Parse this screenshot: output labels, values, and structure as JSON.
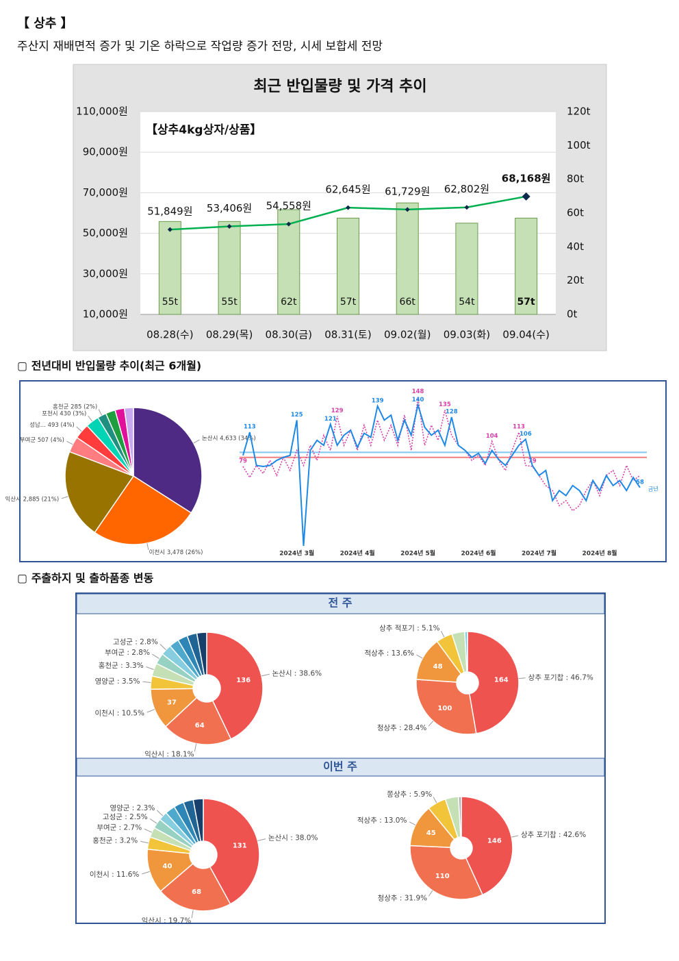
{
  "header": {
    "title": "【 상추 】",
    "summary": "주산지 재배면적 증가 및 기온 하락으로 작업량 증가 전망, 시세 보합세 전망"
  },
  "sections": [
    "▢ 전년대비 반입물량 추이(최근 6개월)",
    "▢ 주출하지 및 출하품종 변동"
  ],
  "panels": [
    "전 주",
    "이번 주"
  ],
  "chart_data": [
    {
      "type": "combo",
      "title": "최근 반입물량 및 가격 추이",
      "subtitle": "【상추4kg상자/상품】",
      "categories": [
        "08.28(수)",
        "08.29(목)",
        "08.30(금)",
        "08.31(토)",
        "09.02(월)",
        "09.03(화)",
        "09.04(수)"
      ],
      "series": [
        {
          "type": "bar",
          "axis": "y2",
          "color": "#c5e0b4",
          "values": [
            55,
            55,
            62,
            57,
            66,
            54,
            57
          ],
          "value_labels": [
            "55t",
            "55t",
            "62t",
            "57t",
            "66t",
            "54t",
            "57t"
          ]
        },
        {
          "type": "line",
          "color": "#00b050",
          "values": [
            51849,
            53406,
            54558,
            62645,
            61729,
            62802,
            68168
          ],
          "value_labels": [
            "51,849원",
            "53,406원",
            "54,558원",
            "62,645원",
            "61,729원",
            "62,802원",
            "68,168원"
          ]
        }
      ],
      "ylim": [
        10000,
        110000
      ],
      "yticks": [
        {
          "value": 10000,
          "label": "10,000원"
        },
        {
          "value": 30000,
          "label": "30,000원"
        },
        {
          "value": 50000,
          "label": "50,000원"
        },
        {
          "value": 70000,
          "label": "70,000원"
        },
        {
          "value": 90000,
          "label": "90,000원"
        },
        {
          "value": 110000,
          "label": "110,000원"
        }
      ],
      "y2lim": [
        0,
        120
      ],
      "y2ticks": [
        {
          "value": 0,
          "label": "0t"
        },
        {
          "value": 20,
          "label": "20t"
        },
        {
          "value": 40,
          "label": "40t"
        },
        {
          "value": 60,
          "label": "60t"
        },
        {
          "value": 80,
          "label": "80t"
        },
        {
          "value": 100,
          "label": "100t"
        },
        {
          "value": 120,
          "label": "120t"
        }
      ],
      "grid": true
    },
    {
      "type": "pie",
      "categories": [
        "논산시 4,633 (34%)",
        "이천시 3,478 (26%)",
        "익산시 2,885 (21%)",
        "부여군 507 (4%)",
        "성남... 493 (4%)",
        "포천시 430 (3%)",
        "홍천군 285 (2%)",
        null,
        null,
        null
      ],
      "values": [
        4633,
        3478,
        2885,
        507,
        493,
        430,
        285,
        310,
        300,
        290
      ],
      "colors": [
        "#4e2a84",
        "#ff6600",
        "#997300",
        "#ff7c80",
        "#ff3b3b",
        "#00d4b4",
        "#1f8f7f",
        "#1e9e3e",
        "#e0109a",
        "#c9a8f0"
      ]
    },
    {
      "type": "line",
      "ylim": [
        0,
        160
      ],
      "xticks": [
        {
          "value": 8,
          "label": "2024년 3월"
        },
        {
          "value": 17,
          "label": "2024년 4월"
        },
        {
          "value": 26,
          "label": "2024년 5월"
        },
        {
          "value": 35,
          "label": "2024년 6월"
        },
        {
          "value": 44,
          "label": "2024년 7월"
        },
        {
          "value": 53,
          "label": "2024년 8월"
        }
      ],
      "reference_lines": [
        {
          "value": 93,
          "color": "#7ec8f0"
        },
        {
          "value": 88,
          "color": "#f08080"
        }
      ],
      "series": [
        {
          "name": "금년",
          "color": "#1e88e5",
          "values": [
            90,
            113,
            80,
            79,
            80,
            85,
            88,
            90,
            125,
            0,
            95,
            105,
            100,
            121,
            100,
            110,
            115,
            98,
            112,
            108,
            139,
            125,
            130,
            105,
            125,
            110,
            140,
            118,
            110,
            115,
            100,
            128,
            100,
            95,
            88,
            92,
            82,
            95,
            86,
            80,
            90,
            100,
            106,
            80,
            70,
            75,
            45,
            55,
            50,
            60,
            55,
            45,
            65,
            55,
            70,
            60,
            65,
            55,
            68,
            58
          ],
          "value_labels": [
            null,
            "113",
            null,
            null,
            null,
            null,
            null,
            null,
            "125",
            null,
            null,
            null,
            null,
            "121",
            null,
            null,
            null,
            null,
            null,
            null,
            "139",
            null,
            null,
            null,
            null,
            null,
            "140",
            null,
            null,
            null,
            null,
            "128",
            null,
            null,
            null,
            null,
            null,
            null,
            null,
            null,
            null,
            null,
            "106",
            null,
            null,
            null,
            null,
            null,
            null,
            null,
            null,
            null,
            null,
            null,
            null,
            null,
            null,
            null,
            null,
            "58"
          ]
        },
        {
          "color": "#d63fa8",
          "values": [
            79,
            68,
            80,
            72,
            85,
            70,
            88,
            75,
            95,
            80,
            100,
            85,
            110,
            95,
            129,
            100,
            115,
            95,
            120,
            100,
            125,
            105,
            120,
            100,
            130,
            95,
            148,
            100,
            120,
            105,
            135,
            110,
            100,
            95,
            85,
            90,
            80,
            104,
            85,
            75,
            95,
            113,
            80,
            79,
            70,
            60,
            55,
            40,
            45,
            35,
            40,
            55,
            65,
            50,
            70,
            75,
            60,
            80,
            65,
            70
          ],
          "value_labels": [
            "79",
            null,
            null,
            null,
            null,
            null,
            null,
            null,
            null,
            null,
            null,
            null,
            null,
            null,
            "129",
            null,
            null,
            null,
            null,
            null,
            null,
            null,
            null,
            null,
            null,
            null,
            "148",
            null,
            null,
            null,
            "135",
            null,
            null,
            null,
            null,
            null,
            null,
            "104",
            null,
            null,
            null,
            "113",
            null,
            "79",
            null,
            null,
            null,
            null,
            null,
            null,
            null,
            null,
            null,
            null,
            null,
            null,
            null,
            null,
            null,
            null
          ]
        }
      ]
    },
    {
      "type": "donut",
      "categories": [
        "논산시 : 38.6%",
        "익산시 : 18.1%",
        "이천시 : 10.5%",
        "영양군 : 3.5%",
        "홍천군 : 3.3%",
        "부여군 : 2.8%",
        "고성군 : 2.8%",
        null,
        null,
        null,
        null
      ],
      "values": [
        136,
        64,
        37,
        12,
        12,
        10,
        10,
        9,
        9,
        9,
        9
      ],
      "value_labels": [
        "136",
        "64",
        "37",
        null,
        null,
        null,
        null,
        null,
        null,
        null,
        null
      ],
      "colors": [
        "#ef5350",
        "#f0704f",
        "#f0963c",
        "#f2c43a",
        "#c5e0b4",
        "#96d1c1",
        "#86cde0",
        "#4fa9cd",
        "#2d86b5",
        "#1f6494",
        "#163f6c"
      ]
    },
    {
      "type": "donut",
      "categories": [
        "상추 포기찹 : 46.7%",
        "청상추 : 28.4%",
        "적상추 : 13.6%",
        "상추 적포기 : 5.1%",
        null,
        null
      ],
      "values": [
        164,
        100,
        48,
        18,
        14,
        3
      ],
      "value_labels": [
        "164",
        "100",
        "48",
        null,
        null,
        null
      ],
      "colors": [
        "#ef5350",
        "#f0704f",
        "#f0963c",
        "#f2c43a",
        "#c5e0b4",
        "#86cde0"
      ]
    },
    {
      "type": "donut",
      "categories": [
        "논산시 : 38.0%",
        "익산시 : 19.7%",
        "이천시 : 11.6%",
        "홍천군 : 3.2%",
        "부여군 : 2.7%",
        "고성군 : 2.5%",
        "영양군 : 2.3%",
        null,
        null,
        null,
        null
      ],
      "values": [
        131,
        68,
        40,
        11,
        9,
        9,
        8,
        9,
        9,
        9,
        9
      ],
      "value_labels": [
        "131",
        "68",
        "40",
        null,
        null,
        null,
        null,
        null,
        null,
        null,
        null
      ],
      "colors": [
        "#ef5350",
        "#f0704f",
        "#f0963c",
        "#f2c43a",
        "#c5e0b4",
        "#96d1c1",
        "#86cde0",
        "#4fa9cd",
        "#2d86b5",
        "#1f6494",
        "#163f6c"
      ]
    },
    {
      "type": "donut",
      "categories": [
        "상추 포기찹 : 42.6%",
        "청상추 : 31.9%",
        "적상추 : 13.0%",
        "쫑상추 : 5.9%",
        null,
        null
      ],
      "values": [
        146,
        110,
        45,
        20,
        14,
        3
      ],
      "value_labels": [
        "146",
        "110",
        "45",
        null,
        null,
        null
      ],
      "colors": [
        "#ef5350",
        "#f0704f",
        "#f0963c",
        "#f2c43a",
        "#c5e0b4",
        "#b0b0b0"
      ]
    }
  ]
}
